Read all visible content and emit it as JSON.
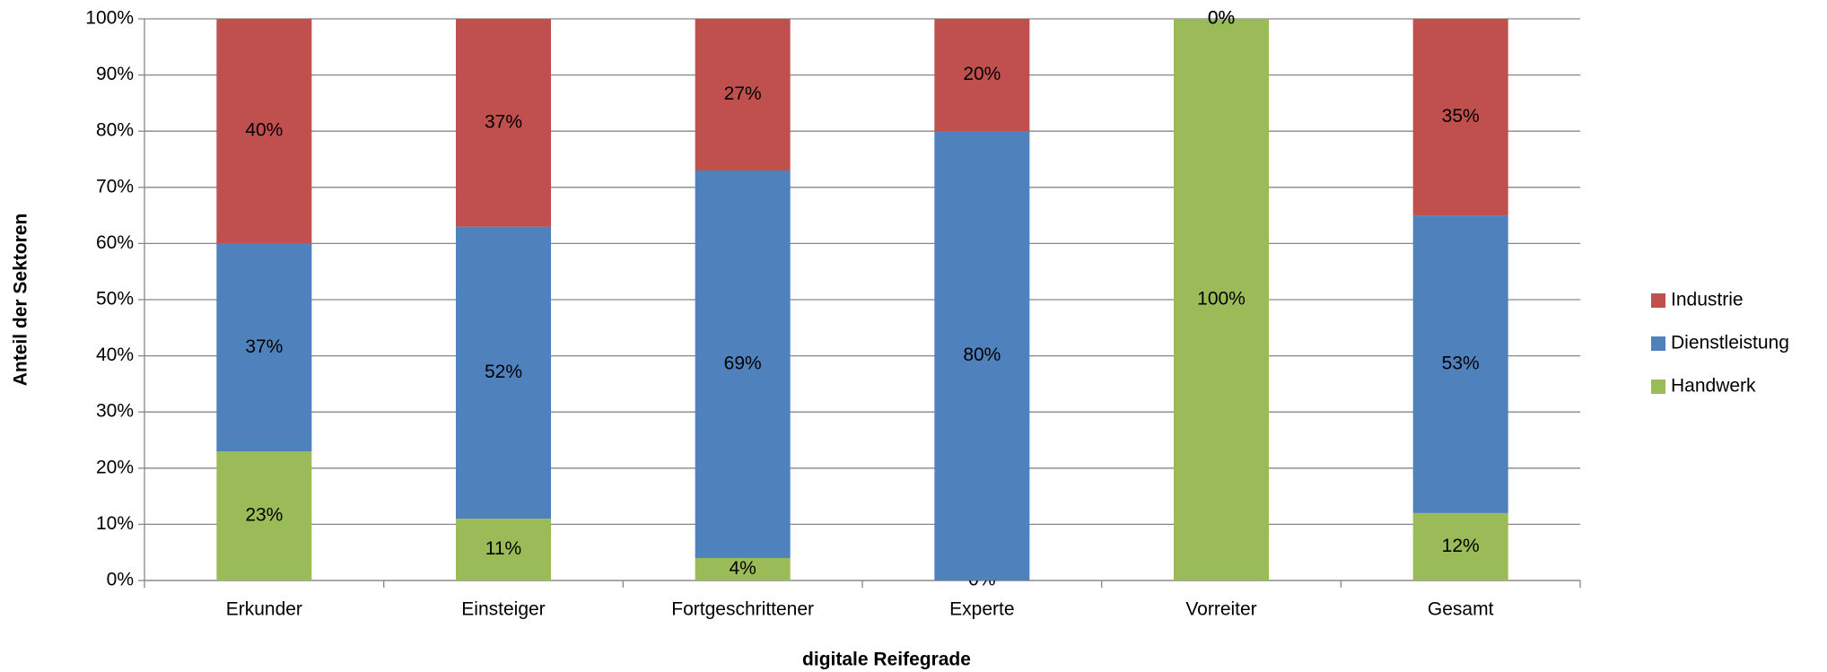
{
  "chart_data": {
    "type": "stacked_bar",
    "categories": [
      "Erkunder",
      "Einsteiger",
      "Fortgeschrittener",
      "Experte",
      "Vorreiter",
      "Gesamt"
    ],
    "series": [
      {
        "name": "Handwerk",
        "color": "#9bbb59",
        "values": [
          23,
          11,
          4,
          0,
          100,
          12
        ],
        "value_labels": [
          "23%",
          "11%",
          "4%",
          "0%",
          "100%",
          "12%"
        ]
      },
      {
        "name": "Dienstleistung",
        "color": "#4f81bd",
        "values": [
          37,
          52,
          69,
          80,
          0,
          53
        ],
        "value_labels": [
          "37%",
          "52%",
          "69%",
          "80%",
          "0%",
          "53%"
        ]
      },
      {
        "name": "Industrie",
        "color": "#c0504d",
        "values": [
          40,
          37,
          27,
          20,
          0,
          35
        ],
        "value_labels": [
          "40%",
          "37%",
          "27%",
          "20%",
          "0%",
          "35%"
        ]
      }
    ],
    "x_label": "digitale Reifegrade",
    "y_label": "Anteil der Sektoren",
    "ylim": [
      0,
      100
    ],
    "yticks": [
      {
        "value": 0,
        "label": "0%"
      },
      {
        "value": 10,
        "label": "10%"
      },
      {
        "value": 20,
        "label": "20%"
      },
      {
        "value": 30,
        "label": "30%"
      },
      {
        "value": 40,
        "label": "40%"
      },
      {
        "value": 50,
        "label": "50%"
      },
      {
        "value": 60,
        "label": "60%"
      },
      {
        "value": 70,
        "label": "70%"
      },
      {
        "value": 80,
        "label": "80%"
      },
      {
        "value": 90,
        "label": "90%"
      },
      {
        "value": 100,
        "label": "100%"
      }
    ],
    "grid": true,
    "legend": "right"
  }
}
